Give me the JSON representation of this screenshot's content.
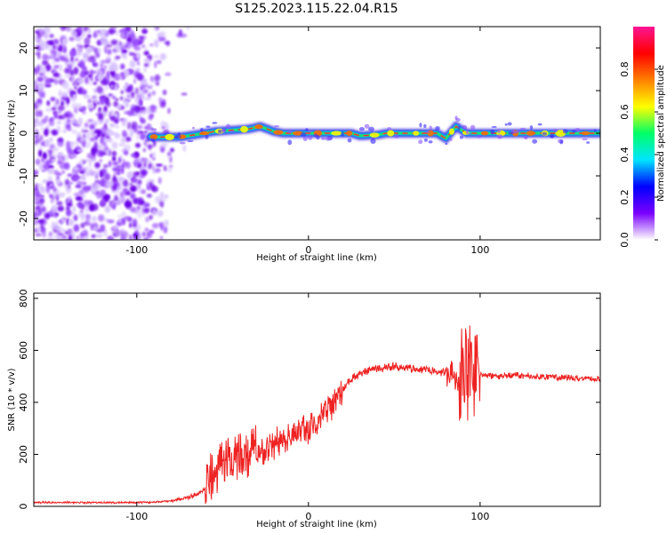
{
  "figure": {
    "title": "S125.2023.115.22.04.R15"
  },
  "chart_data": [
    {
      "type": "heatmap",
      "xlabel": "Height of straight line (km)",
      "ylabel": "Frequency (Hz)",
      "xlim": [
        -160,
        170
      ],
      "ylim": [
        -25,
        25
      ],
      "x_ticks": [
        -100,
        0,
        100
      ],
      "y_ticks": [
        -20,
        -10,
        0,
        10,
        20
      ],
      "colorbar": {
        "label": "Normalized spectral amplitude",
        "range": [
          0,
          1
        ],
        "ticks": [
          0.0,
          0.2,
          0.4,
          0.6,
          0.8
        ],
        "stops": [
          "#ffffff",
          "#7a00ff",
          "#0000ff",
          "#00e5ff",
          "#00ff66",
          "#ffff00",
          "#ff8000",
          "#ff0000",
          "#ff1493"
        ]
      },
      "noise_region_x": [
        -160,
        -80
      ],
      "ridge": [
        {
          "x": -92,
          "y": -0.8
        },
        {
          "x": -85,
          "y": -0.9
        },
        {
          "x": -75,
          "y": -0.9
        },
        {
          "x": -65,
          "y": -0.3
        },
        {
          "x": -55,
          "y": 0.4
        },
        {
          "x": -45,
          "y": 0.7
        },
        {
          "x": -35,
          "y": 1.0
        },
        {
          "x": -28,
          "y": 1.6
        },
        {
          "x": -20,
          "y": 0.4
        },
        {
          "x": -15,
          "y": 0.0
        },
        {
          "x": 0,
          "y": 0.0
        },
        {
          "x": 25,
          "y": 0.0
        },
        {
          "x": 30,
          "y": -0.6
        },
        {
          "x": 40,
          "y": -0.4
        },
        {
          "x": 45,
          "y": 0.0
        },
        {
          "x": 75,
          "y": 0.0
        },
        {
          "x": 80,
          "y": -1.2
        },
        {
          "x": 86,
          "y": 1.6
        },
        {
          "x": 92,
          "y": 0.0
        },
        {
          "x": 170,
          "y": 0.0
        }
      ]
    },
    {
      "type": "line",
      "xlabel": "Height of straight line (km)",
      "ylabel": "SNR (10 * v/v)",
      "xlim": [
        -160,
        170
      ],
      "ylim": [
        0,
        820
      ],
      "x_ticks": [
        -100,
        0,
        100
      ],
      "y_ticks": [
        0,
        200,
        400,
        600,
        800
      ],
      "series": [
        {
          "color": "#ee2222",
          "x": [
            -160,
            -140,
            -120,
            -100,
            -90,
            -80,
            -70,
            -62,
            -57,
            -52,
            -48,
            -44,
            -40,
            -35,
            -30,
            -25,
            -20,
            -15,
            -10,
            -5,
            0,
            5,
            10,
            15,
            20,
            25,
            30,
            35,
            40,
            45,
            50,
            55,
            60,
            70,
            80,
            85,
            88,
            90,
            92,
            94,
            96,
            100,
            110,
            120,
            130,
            140,
            150,
            160,
            170
          ],
          "y": [
            15,
            15,
            14,
            15,
            16,
            22,
            35,
            55,
            110,
            150,
            165,
            180,
            190,
            200,
            210,
            225,
            240,
            260,
            275,
            290,
            300,
            330,
            360,
            400,
            450,
            490,
            510,
            525,
            530,
            535,
            540,
            535,
            530,
            525,
            515,
            500,
            470,
            520,
            560,
            500,
            510,
            505,
            500,
            505,
            500,
            498,
            495,
            492,
            490
          ]
        }
      ]
    }
  ]
}
